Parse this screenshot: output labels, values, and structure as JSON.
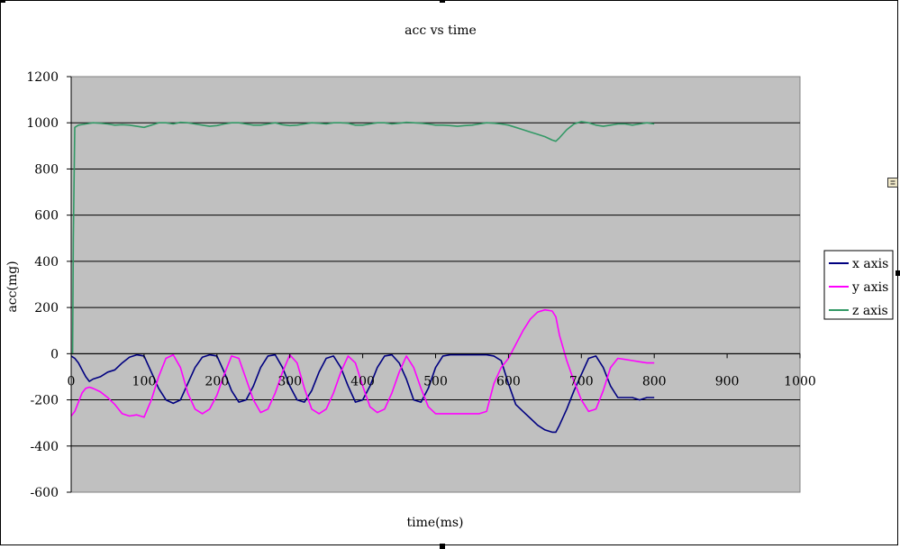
{
  "chart_data": {
    "type": "line",
    "title": "acc vs time",
    "xlabel": "time(ms)",
    "ylabel": "acc(mg)",
    "xlim": [
      0,
      1000
    ],
    "ylim": [
      -600,
      1200
    ],
    "x_ticks": [
      "0",
      "100",
      "200",
      "300",
      "400",
      "500",
      "600",
      "700",
      "800",
      "900",
      "1000"
    ],
    "y_ticks": [
      "1200",
      "1000",
      "800",
      "600",
      "400",
      "200",
      "0",
      "-200",
      "-400",
      "-600"
    ],
    "grid": "horizontal",
    "legend_position": "right",
    "plot_background": "#c0c0c0",
    "series": [
      {
        "name": "x axis",
        "color": "#000080",
        "x": [
          0,
          5,
          10,
          15,
          20,
          25,
          30,
          40,
          50,
          60,
          70,
          80,
          90,
          100,
          110,
          120,
          130,
          140,
          150,
          160,
          170,
          180,
          190,
          200,
          210,
          220,
          230,
          240,
          250,
          260,
          270,
          280,
          290,
          300,
          310,
          320,
          330,
          340,
          350,
          360,
          370,
          380,
          390,
          400,
          410,
          420,
          430,
          440,
          450,
          460,
          470,
          480,
          490,
          500,
          510,
          520,
          530,
          540,
          550,
          560,
          570,
          580,
          590,
          600,
          610,
          620,
          630,
          640,
          650,
          660,
          665,
          670,
          680,
          690,
          700,
          710,
          720,
          730,
          740,
          750,
          760,
          770,
          780,
          790,
          800
        ],
        "values": [
          -10,
          -20,
          -40,
          -70,
          -100,
          -120,
          -110,
          -100,
          -80,
          -70,
          -40,
          -15,
          -5,
          -10,
          -80,
          -150,
          -200,
          -215,
          -200,
          -130,
          -60,
          -15,
          -5,
          -10,
          -80,
          -160,
          -210,
          -200,
          -140,
          -60,
          -10,
          -5,
          -60,
          -140,
          -200,
          -210,
          -160,
          -80,
          -20,
          -10,
          -60,
          -140,
          -210,
          -200,
          -140,
          -60,
          -10,
          -5,
          -40,
          -110,
          -200,
          -210,
          -150,
          -60,
          -10,
          -5,
          -5,
          -5,
          -5,
          -5,
          -5,
          -10,
          -30,
          -130,
          -220,
          -250,
          -280,
          -310,
          -330,
          -340,
          -340,
          -310,
          -240,
          -160,
          -90,
          -20,
          -10,
          -60,
          -140,
          -190,
          -190,
          -190,
          -200,
          -190,
          -190
        ]
      },
      {
        "name": "y axis",
        "color": "#ff00ff",
        "x": [
          0,
          5,
          10,
          15,
          20,
          25,
          30,
          40,
          50,
          60,
          70,
          80,
          90,
          100,
          110,
          120,
          130,
          140,
          150,
          160,
          170,
          180,
          190,
          200,
          210,
          220,
          230,
          240,
          250,
          260,
          270,
          280,
          290,
          300,
          310,
          320,
          330,
          340,
          350,
          360,
          370,
          380,
          390,
          400,
          410,
          420,
          430,
          440,
          450,
          460,
          470,
          480,
          490,
          500,
          510,
          520,
          530,
          540,
          550,
          560,
          570,
          580,
          590,
          600,
          610,
          620,
          630,
          640,
          650,
          660,
          665,
          670,
          680,
          690,
          700,
          710,
          720,
          730,
          740,
          750,
          760,
          770,
          780,
          790,
          800
        ],
        "values": [
          -270,
          -250,
          -210,
          -170,
          -150,
          -145,
          -150,
          -165,
          -190,
          -220,
          -260,
          -270,
          -265,
          -275,
          -200,
          -100,
          -20,
          -5,
          -60,
          -170,
          -240,
          -260,
          -240,
          -180,
          -90,
          -10,
          -20,
          -110,
          -200,
          -255,
          -240,
          -170,
          -80,
          -5,
          -40,
          -150,
          -240,
          -260,
          -240,
          -170,
          -80,
          -10,
          -40,
          -140,
          -230,
          -255,
          -240,
          -170,
          -80,
          -10,
          -60,
          -150,
          -230,
          -260,
          -260,
          -260,
          -260,
          -260,
          -260,
          -260,
          -250,
          -130,
          -60,
          -20,
          40,
          100,
          150,
          180,
          190,
          185,
          160,
          80,
          -30,
          -120,
          -200,
          -250,
          -240,
          -160,
          -60,
          -20,
          -25,
          -30,
          -35,
          -40,
          -40
        ]
      },
      {
        "name": "z axis",
        "color": "#339966",
        "x": [
          0,
          2,
          3,
          5,
          10,
          20,
          30,
          40,
          50,
          60,
          70,
          80,
          90,
          100,
          110,
          120,
          130,
          140,
          150,
          160,
          170,
          180,
          190,
          200,
          210,
          220,
          230,
          240,
          250,
          260,
          270,
          280,
          290,
          300,
          310,
          320,
          330,
          340,
          350,
          360,
          370,
          380,
          390,
          400,
          410,
          420,
          430,
          440,
          450,
          460,
          470,
          480,
          490,
          500,
          510,
          520,
          530,
          540,
          550,
          560,
          570,
          580,
          590,
          600,
          610,
          620,
          630,
          640,
          650,
          660,
          665,
          670,
          680,
          690,
          700,
          710,
          720,
          730,
          740,
          750,
          760,
          770,
          780,
          790,
          800
        ],
        "values": [
          0,
          0,
          500,
          980,
          990,
          995,
          1000,
          998,
          995,
          990,
          992,
          990,
          985,
          980,
          990,
          1000,
          1000,
          995,
          1002,
          1000,
          995,
          990,
          985,
          988,
          995,
          1000,
          1000,
          995,
          990,
          990,
          995,
          1000,
          992,
          988,
          990,
          995,
          1000,
          998,
          995,
          1000,
          1000,
          998,
          990,
          990,
          995,
          1000,
          1000,
          995,
          998,
          1002,
          1000,
          998,
          995,
          990,
          990,
          988,
          985,
          988,
          990,
          995,
          1000,
          998,
          995,
          990,
          980,
          970,
          960,
          950,
          940,
          925,
          920,
          935,
          970,
          995,
          1005,
          1000,
          990,
          985,
          990,
          995,
          995,
          990,
          995,
          1000,
          995
        ]
      }
    ]
  },
  "ui": {
    "side_icon_glyph": "≣"
  }
}
